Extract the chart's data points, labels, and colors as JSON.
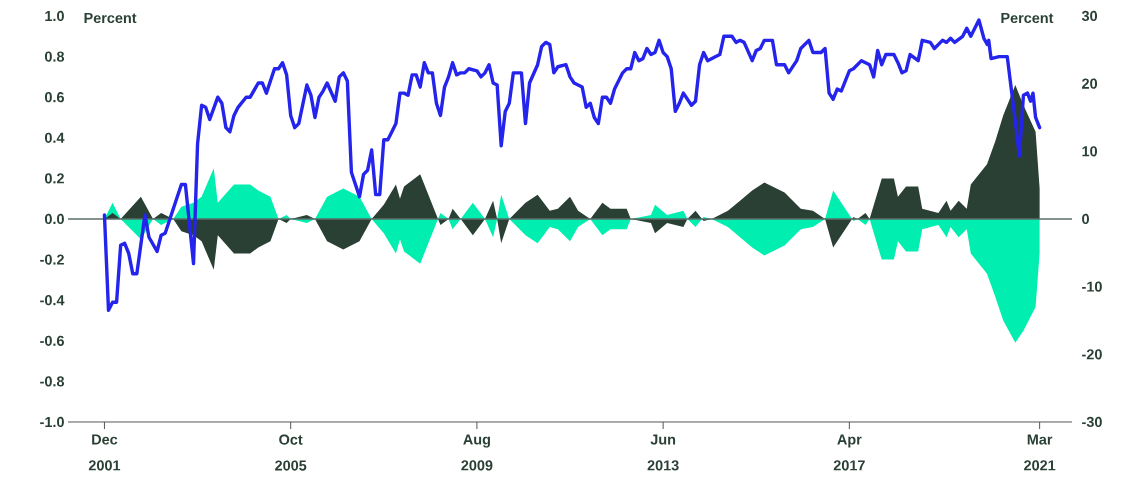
{
  "chart_data": {
    "type": "area",
    "ylabel": "Percent",
    "y2label": "Percent",
    "x": [
      "2001-12",
      "2002-02",
      "2002-04",
      "2002-09",
      "2002-12",
      "2003-02",
      "2003-05",
      "2003-07",
      "2003-10",
      "2003-12",
      "2004-03",
      "2004-04",
      "2004-08",
      "2004-12",
      "2005-02",
      "2005-05",
      "2005-07",
      "2005-09",
      "2005-10",
      "2006-02",
      "2006-04",
      "2006-07",
      "2006-11",
      "2007-03",
      "2007-06",
      "2007-09",
      "2007-12",
      "2008-01",
      "2008-02",
      "2008-06",
      "2008-08",
      "2008-10",
      "2008-11",
      "2009-01",
      "2009-02",
      "2009-04",
      "2009-07",
      "2009-10",
      "2009-12",
      "2010-01",
      "2010-02",
      "2010-04",
      "2010-05",
      "2010-08",
      "2010-11",
      "2011-02",
      "2011-04",
      "2011-07",
      "2011-09",
      "2011-12",
      "2012-03",
      "2012-05",
      "2012-09",
      "2012-10",
      "2013-03",
      "2013-04",
      "2013-07",
      "2013-11",
      "2013-12",
      "2014-02",
      "2014-04",
      "2014-06",
      "2014-10",
      "2015-01",
      "2015-04",
      "2015-07",
      "2015-12",
      "2016-04",
      "2016-07",
      "2016-10",
      "2016-12",
      "2017-03",
      "2017-05",
      "2017-06",
      "2017-08",
      "2017-09",
      "2017-12",
      "2018-03",
      "2018-04",
      "2018-06",
      "2018-09",
      "2018-10",
      "2019-02",
      "2019-04",
      "2019-05",
      "2019-07",
      "2019-09",
      "2019-10",
      "2020-02",
      "2020-04",
      "2020-06",
      "2020-09",
      "2020-11",
      "2021-02",
      "2021-03"
    ],
    "series": [
      {
        "axis": "y2",
        "color": "#00efb0",
        "values": [
          0,
          2.4,
          0,
          -3.0,
          0,
          -0.9,
          0,
          1.8,
          2.4,
          3.3,
          7.5,
          2.4,
          5.1,
          5.1,
          4.2,
          3.3,
          0,
          0.6,
          0,
          -0.6,
          0,
          3.3,
          4.5,
          3.3,
          0,
          -2.1,
          -5.1,
          -3.0,
          -4.8,
          -6.6,
          -3.6,
          -0.6,
          0.9,
          0,
          -1.5,
          0,
          2.4,
          0,
          -2.7,
          0,
          3.6,
          0,
          -0.6,
          -2.4,
          -3.6,
          -1.2,
          -1.5,
          -3.3,
          -1.2,
          0,
          -2.4,
          -1.5,
          -1.5,
          0,
          0.6,
          2.1,
          0.6,
          1.2,
          0,
          -1.2,
          0.3,
          0,
          -1.2,
          -2.7,
          -4.2,
          -5.4,
          -3.9,
          -1.5,
          -1.2,
          0,
          4.2,
          1.5,
          -0.3,
          0,
          -0.9,
          0,
          -6.0,
          -6.0,
          -3.3,
          -4.8,
          -4.8,
          -1.5,
          -0.9,
          -2.7,
          -1.2,
          -2.7,
          -1.5,
          -5.1,
          -8.1,
          -11.4,
          -15.0,
          -18.3,
          -16.5,
          -13.0,
          -5.0
        ]
      },
      {
        "axis": "y2",
        "color": "#2a4034",
        "values": [
          0,
          0.9,
          0,
          3.3,
          0,
          0.9,
          0,
          -1.8,
          -2.4,
          -3.3,
          -7.5,
          -2.4,
          -5.1,
          -5.1,
          -4.2,
          -3.3,
          0,
          -0.6,
          0,
          0.6,
          0,
          -3.3,
          -4.5,
          -3.3,
          0,
          2.1,
          5.1,
          3.0,
          4.8,
          6.6,
          3.6,
          0.6,
          -0.9,
          0,
          1.5,
          0,
          -2.4,
          0,
          2.7,
          0,
          -3.6,
          0,
          0.6,
          2.4,
          3.6,
          1.2,
          1.5,
          3.3,
          1.2,
          0,
          2.4,
          1.5,
          1.5,
          0,
          -0.6,
          -2.1,
          -0.6,
          -1.2,
          0,
          1.2,
          -0.3,
          0,
          1.2,
          2.7,
          4.2,
          5.4,
          3.9,
          1.5,
          1.2,
          0,
          -4.2,
          -1.5,
          0.3,
          0,
          0.9,
          0,
          6.0,
          6.0,
          3.3,
          4.8,
          4.8,
          1.5,
          0.9,
          2.7,
          1.2,
          2.7,
          1.5,
          5.1,
          8.1,
          11.4,
          15.3,
          19.8,
          16.8,
          12.9,
          4.5
        ]
      },
      {
        "type": "line",
        "axis": "y",
        "color": "#2424ec",
        "x": [
          "2001-12",
          "2002-01",
          "2002-02",
          "2002-03",
          "2002-04",
          "2002-05",
          "2002-06",
          "2002-07",
          "2002-08",
          "2002-10",
          "2002-11",
          "2003-01",
          "2003-02",
          "2003-03",
          "2003-05",
          "2003-07",
          "2003-08",
          "2003-10",
          "2003-11",
          "2003-12",
          "2004-01",
          "2004-02",
          "2004-04",
          "2004-05",
          "2004-06",
          "2004-07",
          "2004-08",
          "2004-09",
          "2004-11",
          "2004-12",
          "2005-02",
          "2005-03",
          "2005-04",
          "2005-06",
          "2005-07",
          "2005-08",
          "2005-09",
          "2005-10",
          "2005-11",
          "2005-12",
          "2006-02",
          "2006-03",
          "2006-04",
          "2006-05",
          "2006-06",
          "2006-07",
          "2006-09",
          "2006-10",
          "2006-11",
          "2006-12",
          "2007-01",
          "2007-02",
          "2007-03",
          "2007-04",
          "2007-05",
          "2007-06",
          "2007-07",
          "2007-08",
          "2007-09",
          "2007-10",
          "2007-11",
          "2007-12",
          "2008-01",
          "2008-02",
          "2008-03",
          "2008-04",
          "2008-05",
          "2008-06",
          "2008-07",
          "2008-08",
          "2008-09",
          "2008-10",
          "2008-11",
          "2008-12",
          "2009-01",
          "2009-02",
          "2009-03",
          "2009-04",
          "2009-05",
          "2009-06",
          "2009-08",
          "2009-09",
          "2009-10",
          "2009-11",
          "2009-12",
          "2010-01",
          "2010-02",
          "2010-03",
          "2010-04",
          "2010-05",
          "2010-06",
          "2010-07",
          "2010-08",
          "2010-09",
          "2010-11",
          "2010-12",
          "2011-01",
          "2011-02",
          "2011-03",
          "2011-04",
          "2011-06",
          "2011-07",
          "2011-08",
          "2011-09",
          "2011-10",
          "2011-11",
          "2011-12",
          "2012-01",
          "2012-02",
          "2012-03",
          "2012-04",
          "2012-05",
          "2012-06",
          "2012-08",
          "2012-09",
          "2012-10",
          "2012-11",
          "2012-12",
          "2013-01",
          "2013-02",
          "2013-03",
          "2013-04",
          "2013-05",
          "2013-06",
          "2013-07",
          "2013-08",
          "2013-09",
          "2013-10",
          "2013-11",
          "2013-12",
          "2014-01",
          "2014-02",
          "2014-03",
          "2014-04",
          "2014-05",
          "2014-07",
          "2014-08",
          "2014-09",
          "2014-10",
          "2014-11",
          "2014-12",
          "2015-01",
          "2015-02",
          "2015-04",
          "2015-05",
          "2015-06",
          "2015-07",
          "2015-09",
          "2015-10",
          "2015-12",
          "2016-01",
          "2016-03",
          "2016-04",
          "2016-06",
          "2016-07",
          "2016-09",
          "2016-10",
          "2016-11",
          "2016-12",
          "2017-01",
          "2017-02",
          "2017-04",
          "2017-05",
          "2017-07",
          "2017-08",
          "2017-09",
          "2017-10",
          "2017-11",
          "2017-12",
          "2018-01",
          "2018-03",
          "2018-04",
          "2018-05",
          "2018-06",
          "2018-07",
          "2018-09",
          "2018-10",
          "2018-12",
          "2019-01",
          "2019-03",
          "2019-04",
          "2019-05",
          "2019-06",
          "2019-08",
          "2019-09",
          "2019-10",
          "2019-12",
          "2020-01-08",
          "2020-02-03",
          "2020-02-14",
          "2020-03",
          "2020-05",
          "2020-07",
          "2020-08",
          "2020-09",
          "2020-10",
          "2020-11",
          "2020-12",
          "2020-12-24",
          "2021-01-12",
          "2021-02",
          "2021-03"
        ],
        "values": [
          0.02,
          -0.45,
          -0.41,
          -0.41,
          -0.13,
          -0.12,
          -0.17,
          -0.27,
          -0.27,
          0.02,
          -0.09,
          -0.16,
          -0.08,
          -0.07,
          0.05,
          0.17,
          0.17,
          -0.22,
          0.37,
          0.56,
          0.55,
          0.49,
          0.6,
          0.57,
          0.45,
          0.43,
          0.51,
          0.55,
          0.6,
          0.6,
          0.67,
          0.67,
          0.62,
          0.74,
          0.74,
          0.77,
          0.71,
          0.51,
          0.45,
          0.47,
          0.66,
          0.61,
          0.5,
          0.6,
          0.63,
          0.67,
          0.58,
          0.7,
          0.72,
          0.68,
          0.23,
          0.17,
          0.11,
          0.22,
          0.24,
          0.34,
          0.12,
          0.12,
          0.39,
          0.39,
          0.43,
          0.47,
          0.62,
          0.62,
          0.61,
          0.71,
          0.71,
          0.65,
          0.77,
          0.72,
          0.72,
          0.57,
          0.51,
          0.65,
          0.7,
          0.77,
          0.71,
          0.72,
          0.72,
          0.74,
          0.73,
          0.7,
          0.72,
          0.76,
          0.67,
          0.66,
          0.36,
          0.53,
          0.57,
          0.72,
          0.72,
          0.72,
          0.47,
          0.67,
          0.76,
          0.85,
          0.87,
          0.86,
          0.72,
          0.75,
          0.76,
          0.7,
          0.67,
          0.66,
          0.65,
          0.55,
          0.57,
          0.5,
          0.47,
          0.6,
          0.6,
          0.57,
          0.64,
          0.72,
          0.74,
          0.74,
          0.82,
          0.78,
          0.79,
          0.84,
          0.81,
          0.82,
          0.88,
          0.82,
          0.8,
          0.74,
          0.53,
          0.57,
          0.62,
          0.59,
          0.56,
          0.58,
          0.76,
          0.82,
          0.78,
          0.8,
          0.81,
          0.9,
          0.9,
          0.9,
          0.87,
          0.88,
          0.87,
          0.78,
          0.83,
          0.84,
          0.88,
          0.88,
          0.76,
          0.76,
          0.72,
          0.78,
          0.84,
          0.88,
          0.82,
          0.82,
          0.84,
          0.62,
          0.59,
          0.64,
          0.63,
          0.73,
          0.74,
          0.78,
          0.77,
          0.76,
          0.7,
          0.83,
          0.76,
          0.81,
          0.81,
          0.77,
          0.72,
          0.73,
          0.81,
          0.78,
          0.88,
          0.87,
          0.84,
          0.88,
          0.87,
          0.89,
          0.87,
          0.9,
          0.94,
          0.9,
          0.98,
          0.89,
          0.86,
          0.88,
          0.79,
          0.8,
          0.8,
          0.64,
          0.48,
          0.31,
          0.61,
          0.62,
          0.58,
          0.62,
          0.5,
          0.45
        ]
      }
    ],
    "xlim": [
      "2001-03",
      "2021-11"
    ],
    "xticks": [
      {
        "value": "2001-12",
        "label": "Dec 2001"
      },
      {
        "value": "2005-10",
        "label": "Oct 2005"
      },
      {
        "value": "2009-08",
        "label": "Aug 2009"
      },
      {
        "value": "2013-06",
        "label": "Jun 2013"
      },
      {
        "value": "2017-04",
        "label": "Apr 2017"
      },
      {
        "value": "2021-03",
        "label": "Mar 2021"
      }
    ],
    "ylim": [
      -1,
      1
    ],
    "yticks": [
      {
        "value": -1,
        "label": "-1.0"
      },
      {
        "value": -0.8,
        "label": "-0.8"
      },
      {
        "value": -0.6,
        "label": "-0.6"
      },
      {
        "value": -0.4,
        "label": "-0.4"
      },
      {
        "value": -0.2,
        "label": "-0.2"
      },
      {
        "value": 0,
        "label": "0.0"
      },
      {
        "value": 0.2,
        "label": "0.2"
      },
      {
        "value": 0.4,
        "label": "0.4"
      },
      {
        "value": 0.6,
        "label": "0.6"
      },
      {
        "value": 0.8,
        "label": "0.8"
      },
      {
        "value": 1,
        "label": "1.0"
      }
    ],
    "y2lim": [
      -30,
      30
    ],
    "y2ticks": [
      -30,
      -20,
      -10,
      0,
      10,
      20,
      30
    ],
    "ref_lines": [
      {
        "axis": "y",
        "value": 0,
        "color": "#5b6e68"
      }
    ],
    "grid": false
  }
}
